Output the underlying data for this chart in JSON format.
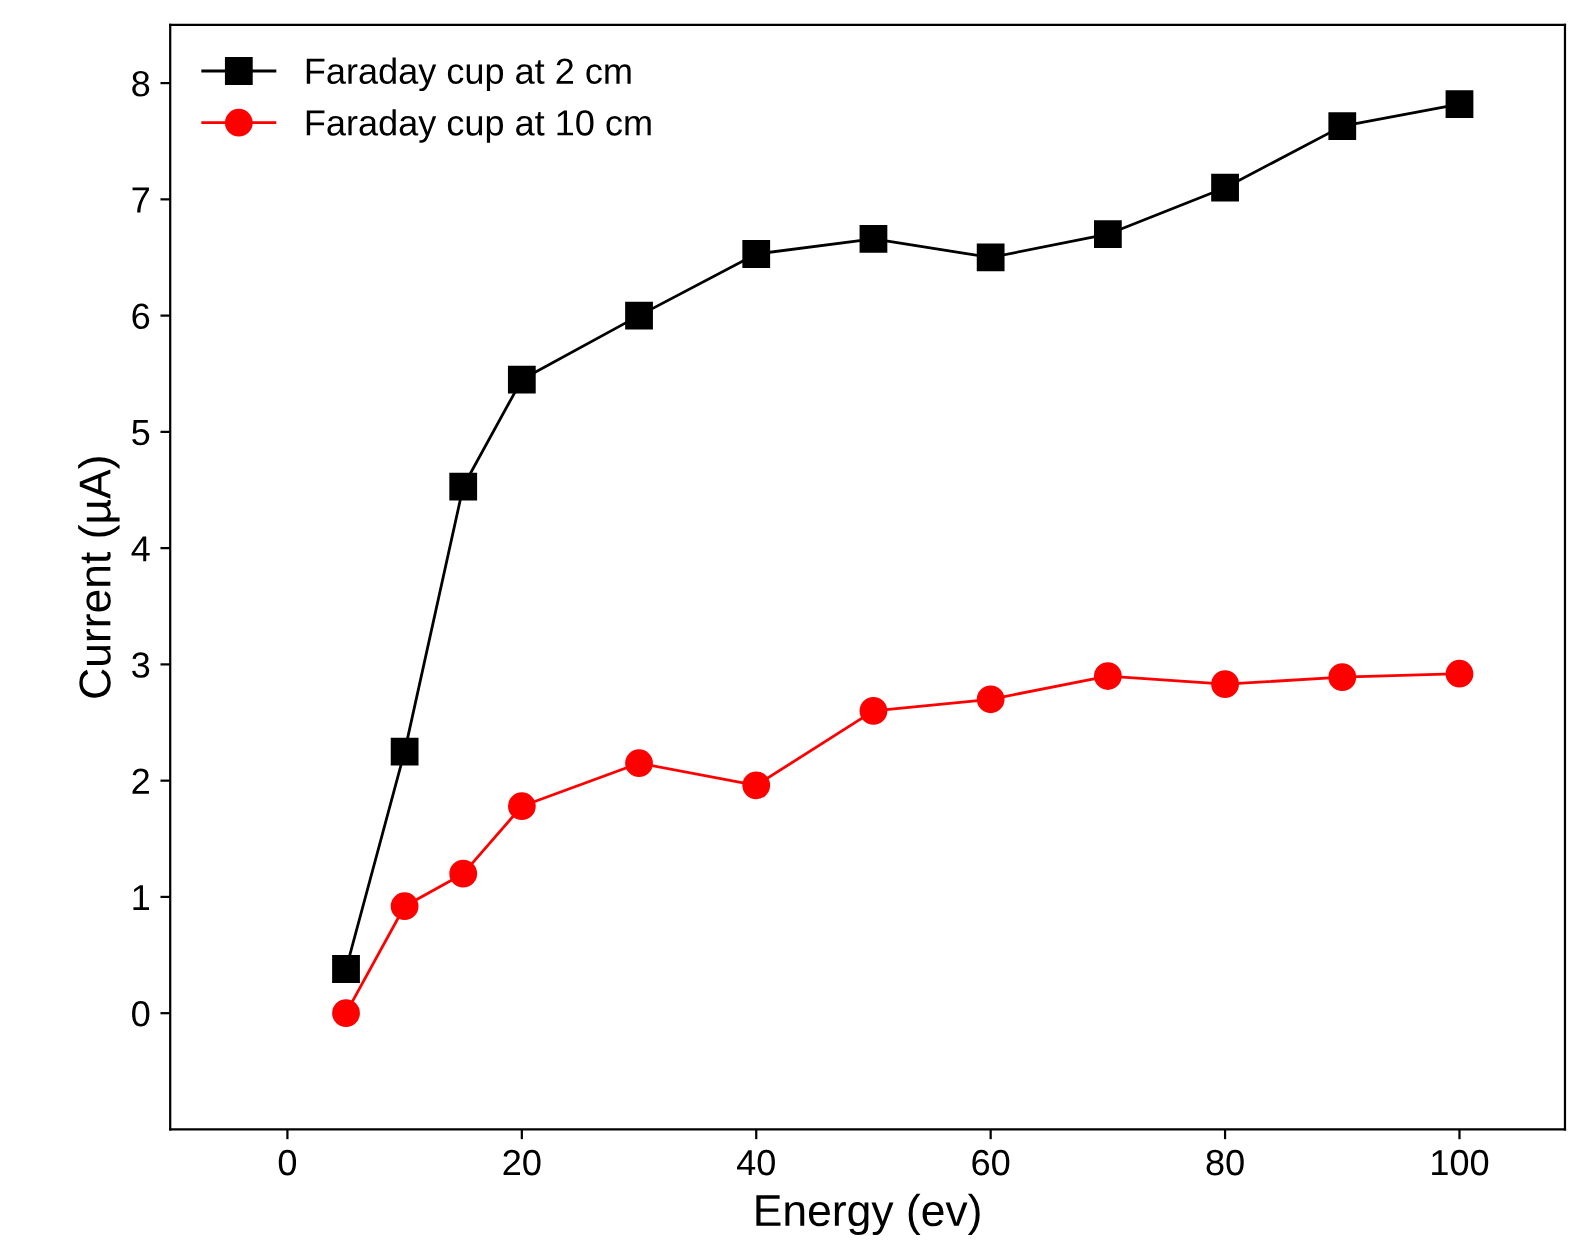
{
  "chart_data": {
    "type": "line",
    "xlabel": "Energy (ev)",
    "ylabel": "Current (µA)",
    "x": [
      5,
      10,
      15,
      20,
      30,
      40,
      50,
      60,
      70,
      80,
      90,
      100
    ],
    "series": [
      {
        "name": "Faraday cup at 2 cm",
        "color": "#000000",
        "marker": "square",
        "values": [
          0.38,
          2.25,
          4.53,
          5.45,
          6.0,
          6.53,
          6.66,
          6.5,
          6.7,
          7.1,
          7.63,
          7.82
        ]
      },
      {
        "name": "Faraday cup at 10 cm",
        "color": "#ff0000",
        "marker": "circle",
        "values": [
          0,
          0.92,
          1.2,
          1.78,
          2.15,
          1.96,
          2.6,
          2.7,
          2.9,
          2.83,
          2.89,
          2.92
        ]
      }
    ],
    "xlim": [
      -10,
      109
    ],
    "xticks": [
      0,
      20,
      40,
      60,
      80,
      100
    ],
    "ylim": [
      -1,
      8.5
    ],
    "yticks": [
      0,
      1,
      2,
      3,
      4,
      5,
      6,
      7,
      8
    ],
    "grid": false,
    "legend": "top left",
    "line_style": "solid"
  }
}
